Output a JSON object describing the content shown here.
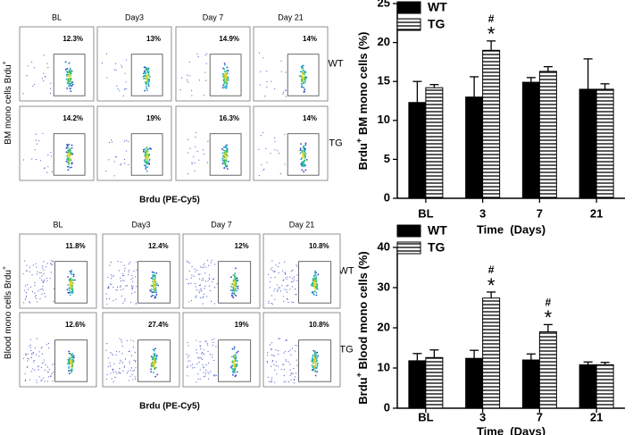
{
  "flow_panels": [
    {
      "columns": [
        "BL",
        "Day3",
        "Day 7",
        "Day 21"
      ],
      "rows": [
        "WT",
        "TG"
      ],
      "percentages": [
        [
          "12.3%",
          "13%",
          "14.9%",
          "14%"
        ],
        [
          "14.2%",
          "19%",
          "16.3%",
          "14%"
        ]
      ],
      "ylabel_parts": [
        "BM mono cells Brdu",
        "+"
      ],
      "xlabel": "Brdu (PE-Cy5)"
    },
    {
      "columns": [
        "BL",
        "Day3",
        "Day 7",
        "Day 21"
      ],
      "rows": [
        "WT",
        "TG"
      ],
      "percentages": [
        [
          "11.8%",
          "12.4%",
          "12%",
          "10.8%"
        ],
        [
          "12.6%",
          "27.4%",
          "19%",
          "10.8%"
        ]
      ],
      "ylabel_parts": [
        "Blood mono cells Brdu",
        "+"
      ],
      "xlabel": "Brdu (PE-Cy5)"
    }
  ],
  "chart_data": [
    {
      "type": "bar",
      "ylabel_parts": [
        "Brdu",
        "+",
        " BM mono cells (%)"
      ],
      "xlabel": "Time  (Days)",
      "categories": [
        "BL",
        "3",
        "7",
        "21"
      ],
      "ylim": [
        0,
        25
      ],
      "yticks": [
        0,
        5,
        10,
        15,
        20,
        25
      ],
      "legend": "top-left",
      "series": [
        {
          "name": "WT",
          "color": "#000000",
          "pattern": "solid",
          "values": [
            12.3,
            13,
            14.9,
            14
          ],
          "errors": [
            2.7,
            2.6,
            0.6,
            3.9
          ]
        },
        {
          "name": "TG",
          "color": "#000000",
          "pattern": "stripes",
          "values": [
            14.2,
            19,
            16.3,
            14
          ],
          "errors": [
            0.4,
            1.2,
            0.6,
            0.7
          ],
          "sig_star": [
            null,
            "*",
            null,
            null
          ],
          "sig_hash": [
            null,
            "#",
            null,
            null
          ]
        }
      ]
    },
    {
      "type": "bar",
      "ylabel_parts": [
        "Brdu",
        "+",
        " Blood mono cells (%)"
      ],
      "xlabel": "Time  (Days)",
      "categories": [
        "BL",
        "3",
        "7",
        "21"
      ],
      "ylim": [
        0,
        40
      ],
      "yticks": [
        0,
        10,
        20,
        30,
        40
      ],
      "legend": "top-left",
      "series": [
        {
          "name": "WT",
          "color": "#000000",
          "pattern": "solid",
          "values": [
            11.8,
            12.4,
            12,
            10.8
          ],
          "errors": [
            1.8,
            2,
            1.5,
            0.7
          ]
        },
        {
          "name": "TG",
          "color": "#000000",
          "pattern": "stripes",
          "values": [
            12.6,
            27.4,
            19,
            10.8
          ],
          "errors": [
            1.9,
            1.5,
            1.8,
            0.6
          ],
          "sig_star": [
            null,
            "*",
            "*",
            null
          ],
          "sig_hash": [
            null,
            "#",
            "#",
            null
          ]
        }
      ]
    }
  ]
}
